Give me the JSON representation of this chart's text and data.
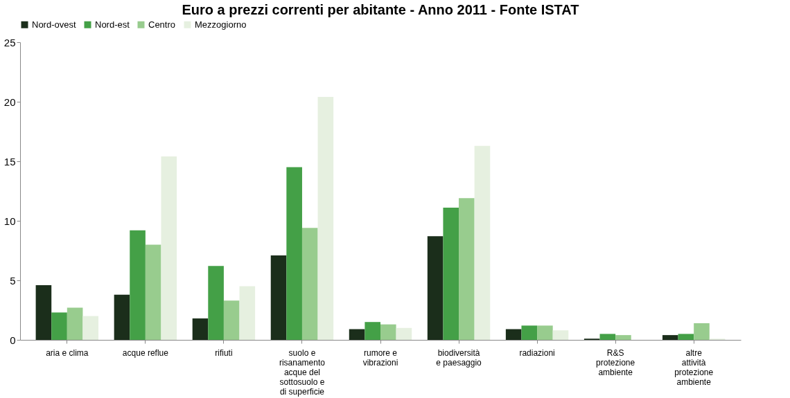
{
  "chart_data": {
    "type": "bar",
    "title": "Euro a prezzi correnti per abitante - Anno 2011 - Fonte ISTAT",
    "categories": [
      "aria e clima",
      "acque reflue",
      "rifiuti",
      "suolo e risanamento acque del sottosuolo e di superficie",
      "rumore e vibrazioni",
      "biodiversità e paesaggio",
      "radiazioni",
      "R&S protezione ambiente",
      "altre attività protezione ambiente"
    ],
    "series": [
      {
        "name": "Nord-ovest",
        "color": "#1b2e1b",
        "values": [
          4.6,
          3.8,
          1.8,
          7.1,
          0.9,
          8.7,
          0.9,
          0.1,
          0.4
        ]
      },
      {
        "name": "Nord-est",
        "color": "#44a047",
        "values": [
          2.3,
          9.2,
          6.2,
          14.5,
          1.5,
          11.1,
          1.2,
          0.5,
          0.5
        ]
      },
      {
        "name": "Centro",
        "color": "#98cc8e",
        "values": [
          2.7,
          8.0,
          3.3,
          9.4,
          1.3,
          11.9,
          1.2,
          0.4,
          1.4
        ]
      },
      {
        "name": "Mezzogiorno",
        "color": "#e6f0e0",
        "values": [
          2.0,
          15.4,
          4.5,
          20.4,
          1.0,
          16.3,
          0.8,
          0.0,
          0.1
        ]
      }
    ],
    "ylim": [
      0,
      25
    ],
    "yticks": [
      0,
      5,
      10,
      15,
      20,
      25
    ],
    "grid": false,
    "legend": "top"
  }
}
